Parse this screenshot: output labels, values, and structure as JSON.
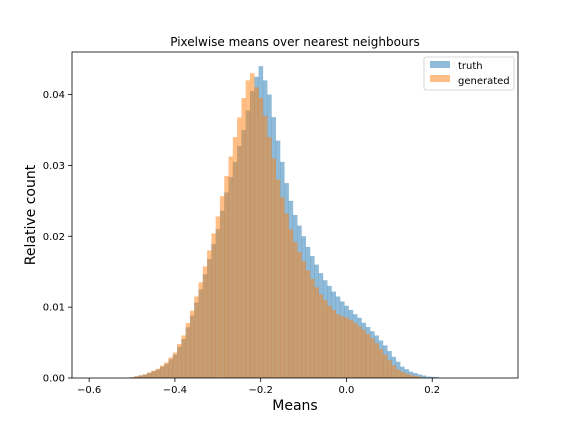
{
  "chart_data": {
    "type": "bar",
    "title": "Pixelwise means over nearest neighbours",
    "xlabel": "Means",
    "ylabel": "Relative count",
    "xlim": [
      -0.64,
      0.4
    ],
    "ylim": [
      0,
      0.046
    ],
    "x_ticks": [
      -0.6,
      -0.4,
      -0.2,
      0.0,
      0.2
    ],
    "x_tick_labels": [
      "−0.6",
      "−0.4",
      "−0.2",
      "0.0",
      "0.2"
    ],
    "y_ticks": [
      0,
      0.01,
      0.02,
      0.03,
      0.04
    ],
    "y_tick_labels": [
      "0.00",
      "0.01",
      "0.02",
      "0.03",
      "0.04"
    ],
    "grid": false,
    "legend_position": "top-right",
    "series": [
      {
        "name": "truth",
        "color": "#1f77b4",
        "alpha": 0.5,
        "points": [
          [
            -0.5,
            0.0001
          ],
          [
            -0.47,
            0.0005
          ],
          [
            -0.44,
            0.0012
          ],
          [
            -0.42,
            0.002
          ],
          [
            -0.4,
            0.0033
          ],
          [
            -0.38,
            0.0055
          ],
          [
            -0.36,
            0.0088
          ],
          [
            -0.34,
            0.0125
          ],
          [
            -0.32,
            0.0168
          ],
          [
            -0.3,
            0.021
          ],
          [
            -0.28,
            0.0262
          ],
          [
            -0.26,
            0.0305
          ],
          [
            -0.24,
            0.035
          ],
          [
            -0.22,
            0.0405
          ],
          [
            -0.21,
            0.0425
          ],
          [
            -0.2,
            0.044
          ],
          [
            -0.19,
            0.042
          ],
          [
            -0.18,
            0.04
          ],
          [
            -0.17,
            0.0368
          ],
          [
            -0.16,
            0.0335
          ],
          [
            -0.15,
            0.0305
          ],
          [
            -0.14,
            0.0275
          ],
          [
            -0.13,
            0.025
          ],
          [
            -0.12,
            0.023
          ],
          [
            -0.11,
            0.0215
          ],
          [
            -0.1,
            0.02
          ],
          [
            -0.09,
            0.0185
          ],
          [
            -0.08,
            0.0172
          ],
          [
            -0.07,
            0.016
          ],
          [
            -0.06,
            0.0148
          ],
          [
            -0.05,
            0.0138
          ],
          [
            -0.04,
            0.013
          ],
          [
            -0.03,
            0.0122
          ],
          [
            -0.02,
            0.0115
          ],
          [
            -0.01,
            0.0108
          ],
          [
            0.0,
            0.0102
          ],
          [
            0.01,
            0.0096
          ],
          [
            0.02,
            0.009
          ],
          [
            0.03,
            0.0085
          ],
          [
            0.04,
            0.0078
          ],
          [
            0.05,
            0.0072
          ],
          [
            0.06,
            0.0066
          ],
          [
            0.07,
            0.006
          ],
          [
            0.08,
            0.0053
          ],
          [
            0.09,
            0.0046
          ],
          [
            0.1,
            0.0038
          ],
          [
            0.11,
            0.003
          ],
          [
            0.12,
            0.0023
          ],
          [
            0.13,
            0.0016
          ],
          [
            0.15,
            0.0009
          ],
          [
            0.17,
            0.0005
          ],
          [
            0.19,
            0.0002
          ],
          [
            0.22,
            0.0001
          ]
        ]
      },
      {
        "name": "generated",
        "color": "#ff7f0e",
        "alpha": 0.5,
        "points": [
          [
            -0.5,
            0.0001
          ],
          [
            -0.47,
            0.0005
          ],
          [
            -0.44,
            0.0013
          ],
          [
            -0.42,
            0.0022
          ],
          [
            -0.4,
            0.0036
          ],
          [
            -0.38,
            0.006
          ],
          [
            -0.36,
            0.0095
          ],
          [
            -0.34,
            0.0135
          ],
          [
            -0.32,
            0.018
          ],
          [
            -0.3,
            0.0228
          ],
          [
            -0.28,
            0.0285
          ],
          [
            -0.26,
            0.034
          ],
          [
            -0.24,
            0.0395
          ],
          [
            -0.23,
            0.042
          ],
          [
            -0.22,
            0.043
          ],
          [
            -0.21,
            0.041
          ],
          [
            -0.2,
            0.0395
          ],
          [
            -0.19,
            0.037
          ],
          [
            -0.18,
            0.034
          ],
          [
            -0.17,
            0.031
          ],
          [
            -0.16,
            0.028
          ],
          [
            -0.15,
            0.0255
          ],
          [
            -0.14,
            0.0232
          ],
          [
            -0.13,
            0.021
          ],
          [
            -0.12,
            0.0192
          ],
          [
            -0.11,
            0.0178
          ],
          [
            -0.1,
            0.0165
          ],
          [
            -0.09,
            0.0152
          ],
          [
            -0.08,
            0.014
          ],
          [
            -0.07,
            0.0128
          ],
          [
            -0.06,
            0.0118
          ],
          [
            -0.05,
            0.011
          ],
          [
            -0.04,
            0.0102
          ],
          [
            -0.03,
            0.0096
          ],
          [
            -0.02,
            0.009
          ],
          [
            -0.01,
            0.0087
          ],
          [
            0.0,
            0.0085
          ],
          [
            0.01,
            0.0082
          ],
          [
            0.02,
            0.0078
          ],
          [
            0.03,
            0.0073
          ],
          [
            0.04,
            0.0068
          ],
          [
            0.05,
            0.0062
          ],
          [
            0.06,
            0.0056
          ],
          [
            0.07,
            0.0049
          ],
          [
            0.08,
            0.0041
          ],
          [
            0.09,
            0.0033
          ],
          [
            0.1,
            0.0025
          ],
          [
            0.11,
            0.0018
          ],
          [
            0.12,
            0.0012
          ],
          [
            0.14,
            0.0006
          ],
          [
            0.16,
            0.0003
          ],
          [
            0.18,
            0.0001
          ]
        ]
      }
    ]
  }
}
